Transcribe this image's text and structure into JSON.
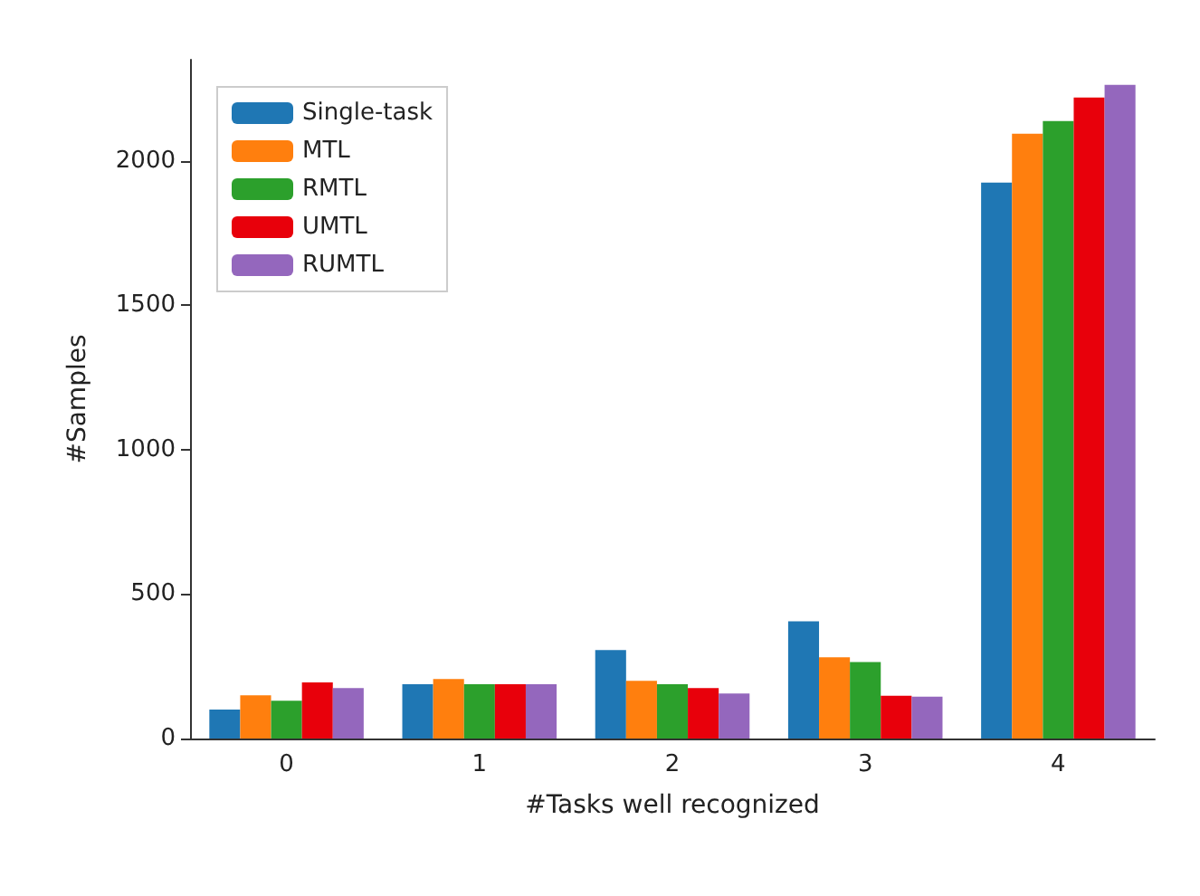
{
  "chart_data": {
    "type": "bar",
    "xlabel": "#Tasks well recognized",
    "ylabel": "#Samples",
    "categories": [
      "0",
      "1",
      "2",
      "3",
      "4"
    ],
    "series": [
      {
        "name": "Single-task",
        "color": "#1f77b4",
        "values": [
          100,
          188,
          306,
          406,
          1925
        ]
      },
      {
        "name": "MTL",
        "color": "#ff7f0e",
        "values": [
          150,
          206,
          200,
          281,
          2094
        ]
      },
      {
        "name": "RMTL",
        "color": "#2ca02c",
        "values": [
          131,
          188,
          188,
          265,
          2138
        ]
      },
      {
        "name": "UMTL",
        "color": "#e8000b",
        "values": [
          194,
          188,
          175,
          148,
          2219
        ]
      },
      {
        "name": "RUMTL",
        "color": "#9467bd",
        "values": [
          175,
          188,
          156,
          145,
          2263
        ]
      }
    ],
    "ylim": [
      0,
      2350
    ],
    "yticks": [
      0,
      500,
      1000,
      1500,
      2000
    ],
    "grid": false,
    "legend": "top left"
  }
}
